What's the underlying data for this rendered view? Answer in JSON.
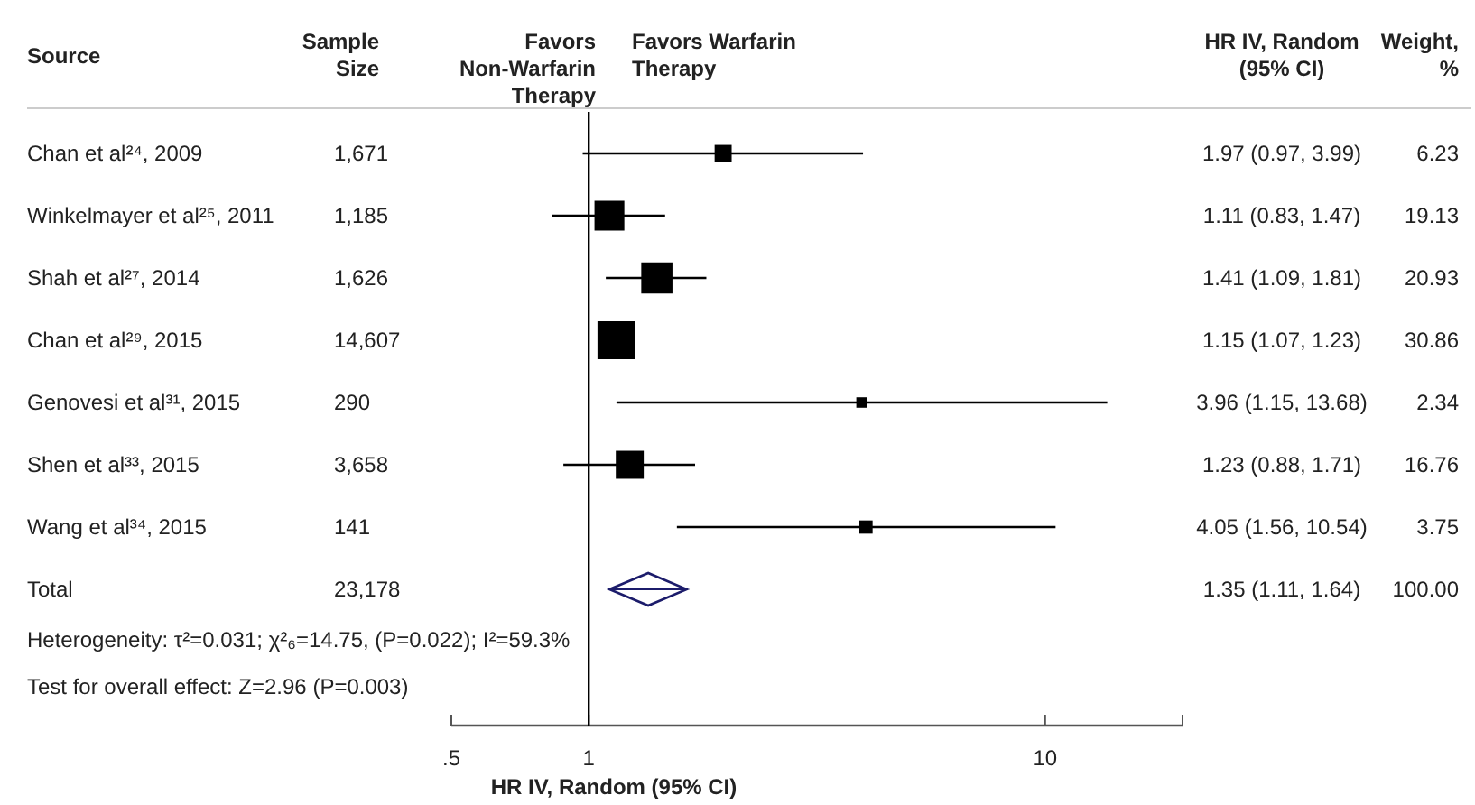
{
  "chart_data": {
    "type": "scatter",
    "orientation": "horizontal",
    "log": "x",
    "marker": "square",
    "xlabel": "HR IV, Random (95% CI)",
    "categories": [
      "Chan et al²⁴, 2009",
      "Winkelmayer et al²⁵, 2011",
      "Shah et al²⁷, 2014",
      "Chan et al²⁹, 2015",
      "Genovesi et al³¹, 2015",
      "Shen et al³³, 2015",
      "Wang et al³⁴, 2015",
      "Total"
    ],
    "xlim": [
      0.5,
      20
    ],
    "xticks": [
      {
        "value": 0.5,
        "label": ".5"
      },
      1,
      10
    ],
    "ref_lines": [
      {
        "axis": "x",
        "value": 1,
        "color": "#000000"
      }
    ],
    "series": [
      {
        "type": "bubble",
        "color": "#000000",
        "values": [
          1.97,
          1.11,
          1.41,
          1.15,
          3.96,
          1.23,
          4.05,
          null
        ],
        "sizes": [
          0.202,
          0.62,
          0.678,
          1,
          0.076,
          0.543,
          0.122,
          null
        ],
        "errors": [
          [
            0.97,
            3.99
          ],
          [
            0.83,
            1.47
          ],
          [
            1.09,
            1.81
          ],
          [
            1.07,
            1.23
          ],
          [
            1.15,
            13.68
          ],
          [
            0.88,
            1.71
          ],
          [
            1.56,
            10.54
          ],
          null
        ],
        "value_labels": [
          "1.97 (0.97, 3.99)",
          "1.11 (0.83, 1.47)",
          "1.41 (1.09, 1.81)",
          "1.15 (1.07, 1.23)",
          "3.96 (1.15, 13.68)",
          "1.23 (0.88, 1.71)",
          "4.05 (1.56, 10.54)",
          null
        ]
      },
      {
        "marker": "diamond",
        "color": "#1c1c6b",
        "values": [
          null,
          null,
          null,
          null,
          null,
          null,
          null,
          1.35
        ],
        "errors": [
          null,
          null,
          null,
          null,
          null,
          null,
          null,
          [
            1.11,
            1.64
          ]
        ]
      }
    ],
    "annotations": [
      "Source",
      "Sample Size",
      "Favors Non-Warfarin Therapy",
      "Favors Warfarin Therapy",
      "HR IV, Random (95% CI)",
      "Weight, %",
      "1,671",
      "1,185",
      "1,626",
      "14,607",
      "290",
      "3,658",
      "141",
      "23,178",
      "6.23",
      "19.13",
      "20.93",
      "30.86",
      "2.34",
      "16.76",
      "3.75",
      "100.00",
      "1.35 (1.11, 1.64)",
      "Heterogeneity: τ²=0.031; χ²₆=14.75, (P=0.022); I²=59.3%",
      "Test for overall effect: Z=2.96 (P=0.003)"
    ]
  }
}
